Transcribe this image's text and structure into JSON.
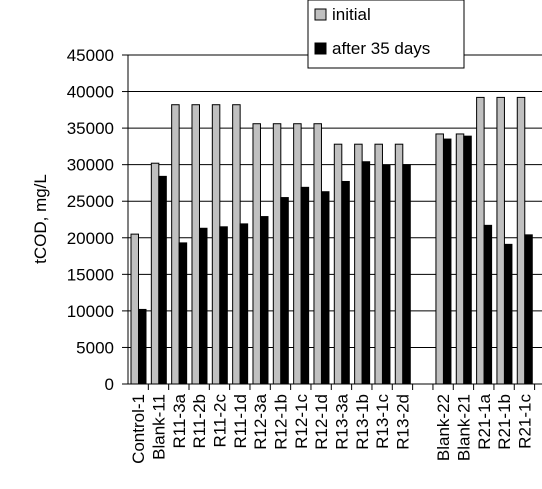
{
  "chart_data": {
    "type": "bar",
    "ylabel": "tCOD, mg/L",
    "xlabel": "",
    "ylim": [
      0,
      45000
    ],
    "yticks": [
      0,
      5000,
      10000,
      15000,
      20000,
      25000,
      30000,
      35000,
      40000,
      45000
    ],
    "ytick_labels": [
      "0",
      "5000",
      "10000",
      "15000",
      "20000",
      "25000",
      "30000",
      "35000",
      "40000",
      "45000"
    ],
    "grid": true,
    "legend_position": "top",
    "categories": [
      "Control-1",
      "Blank-11",
      "R11-3a",
      "R11-2b",
      "R11-2c",
      "R11-1d",
      "R12-3a",
      "R12-1b",
      "R12-1c",
      "R12-1d",
      "R13-3a",
      "R13-1b",
      "R13-1c",
      "R13-2d",
      "",
      "Blank-22",
      "Blank-21",
      "R21-1a",
      "R21-1b",
      "R21-1c"
    ],
    "series": [
      {
        "name": "initial",
        "color": "#c0c0c0",
        "values": [
          20500,
          30200,
          38200,
          38200,
          38200,
          38200,
          35600,
          35600,
          35600,
          35600,
          32800,
          32800,
          32800,
          32800,
          null,
          34200,
          34200,
          39200,
          39200,
          39200
        ]
      },
      {
        "name": "after 35 days",
        "color": "#000000",
        "values": [
          10200,
          28400,
          19300,
          21300,
          21500,
          21900,
          22900,
          25500,
          26900,
          26300,
          27700,
          30400,
          29900,
          30000,
          null,
          33500,
          33900,
          21700,
          19100,
          20400
        ]
      }
    ]
  }
}
